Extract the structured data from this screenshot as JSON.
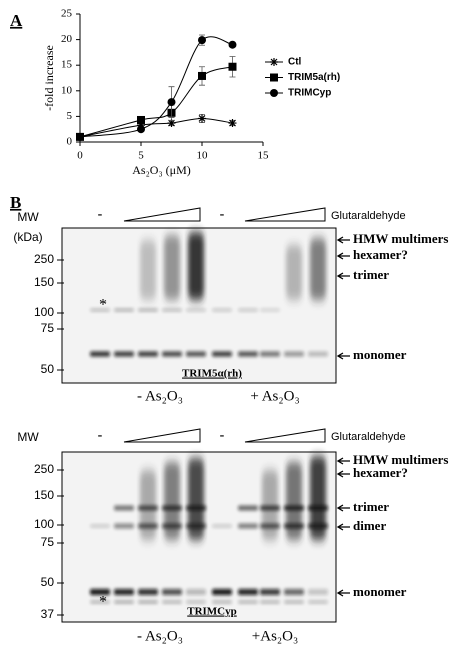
{
  "chart_data": {
    "type": "line",
    "y_label": "-fold increase",
    "x_label": "As₂O₃ (μM)",
    "x": [
      0,
      5,
      7.5,
      10,
      12.5
    ],
    "xlim": [
      0,
      15
    ],
    "xticks": [
      0,
      5,
      10,
      15
    ],
    "ylim": [
      0,
      25
    ],
    "yticks": [
      0,
      5,
      10,
      15,
      20,
      25
    ],
    "grid": false,
    "series": [
      {
        "name": "Ctl",
        "color": "#000000",
        "marker": "asterisk",
        "values": [
          1,
          3.3,
          3.7,
          4.6,
          3.7
        ],
        "errors": [
          0,
          0.3,
          0.5,
          0.8,
          0.5
        ]
      },
      {
        "name": "TRIM5a(rh)",
        "color": "#000000",
        "marker": "square",
        "values": [
          1,
          4.3,
          5.7,
          12.9,
          14.7
        ],
        "errors": [
          0,
          0.4,
          1.5,
          1.8,
          2
        ]
      },
      {
        "name": "TRIMCyp",
        "color": "#000000",
        "marker": "circle",
        "values": [
          1,
          2.5,
          7.8,
          19.9,
          19
        ],
        "errors": [
          0,
          0.4,
          3,
          1,
          0.4
        ]
      }
    ]
  },
  "panel_labels": [
    "A",
    "B"
  ],
  "blots": [
    {
      "mw_heading": [
        "MW",
        "(kDa)"
      ],
      "mw": [
        250,
        150,
        100,
        75,
        50
      ],
      "treatment": "Glutaraldehyde",
      "untreated": [
        "-",
        "-"
      ],
      "bands": [
        "HMW multimers",
        "hexamer?",
        "trimer",
        "monomer"
      ],
      "star": "*",
      "name": "TRIM5α(rh)",
      "conditions": [
        "- As₂O₃",
        "+ As₂O₃"
      ]
    },
    {
      "mw_heading": [
        "MW"
      ],
      "mw": [
        250,
        150,
        100,
        75,
        50,
        37
      ],
      "treatment": "Glutaraldehyde",
      "untreated": [
        "-",
        "-"
      ],
      "bands": [
        "HMW multimers",
        "hexamer?",
        "trimer",
        "dimer",
        "monomer"
      ],
      "star": "*",
      "name": "TRIMCyp",
      "conditions": [
        "- As₂O₃",
        "+As₂O₃"
      ]
    }
  ]
}
